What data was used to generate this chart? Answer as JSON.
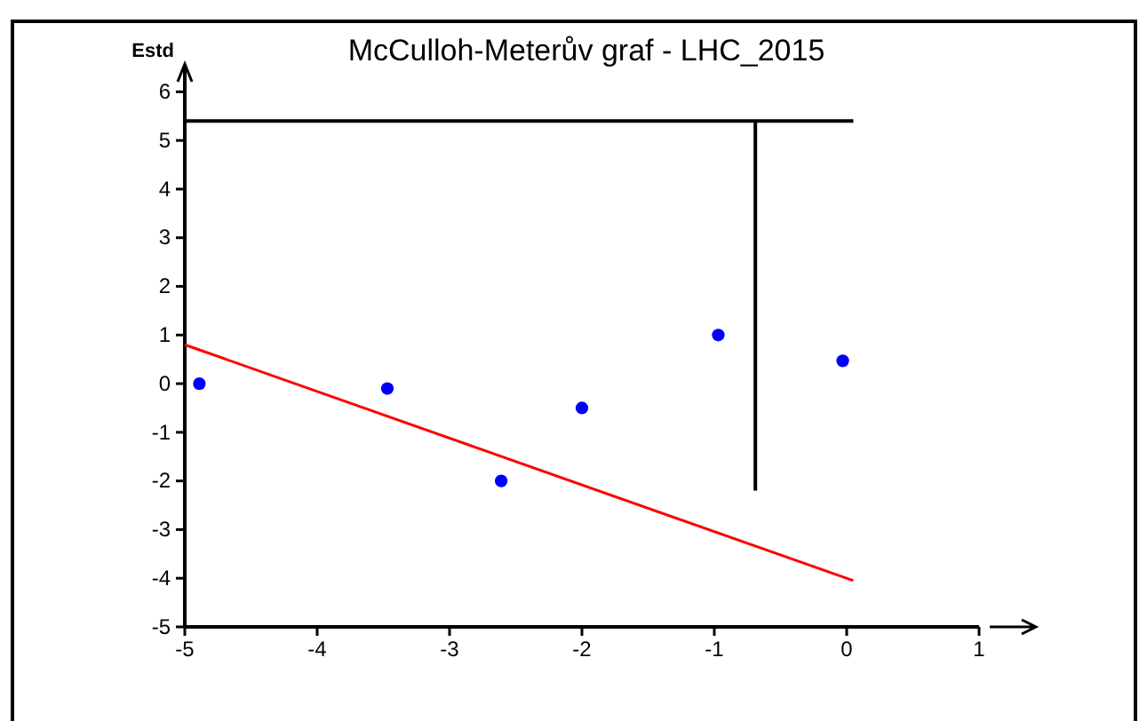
{
  "chart_data": {
    "type": "scatter",
    "title": "McCulloh-Meterův graf - LHC_2015",
    "ylabel": "Estd",
    "xlim": [
      -5,
      1
    ],
    "ylim": [
      -5,
      6.5
    ],
    "xticks": [
      -5,
      -4,
      -3,
      -2,
      -1,
      0,
      1
    ],
    "yticks": [
      -5,
      -4,
      -3,
      -2,
      -1,
      0,
      1,
      2,
      3,
      4,
      5,
      6
    ],
    "grid": false,
    "marker": "circle",
    "series": [
      {
        "color": "#0000ff",
        "x": [
          -4.89,
          -3.47,
          -2.61,
          -2.0,
          -0.97,
          -0.03
        ],
        "values": [
          0,
          -0.1,
          -2.0,
          -0.5,
          1.0,
          0.47
        ]
      },
      {
        "type": "line",
        "color": "#ff0000",
        "marker": "none",
        "x": [
          -5,
          0.05
        ],
        "values": [
          0.8,
          -4.05
        ]
      },
      {
        "type": "line",
        "color": "#000000",
        "marker": "none",
        "x": [
          -5,
          0.05
        ],
        "values": [
          5.4,
          5.4
        ]
      },
      {
        "type": "line",
        "color": "#000000",
        "marker": "none",
        "x": [
          -0.69,
          -0.69
        ],
        "values": [
          5.4,
          -2.2
        ]
      }
    ]
  }
}
